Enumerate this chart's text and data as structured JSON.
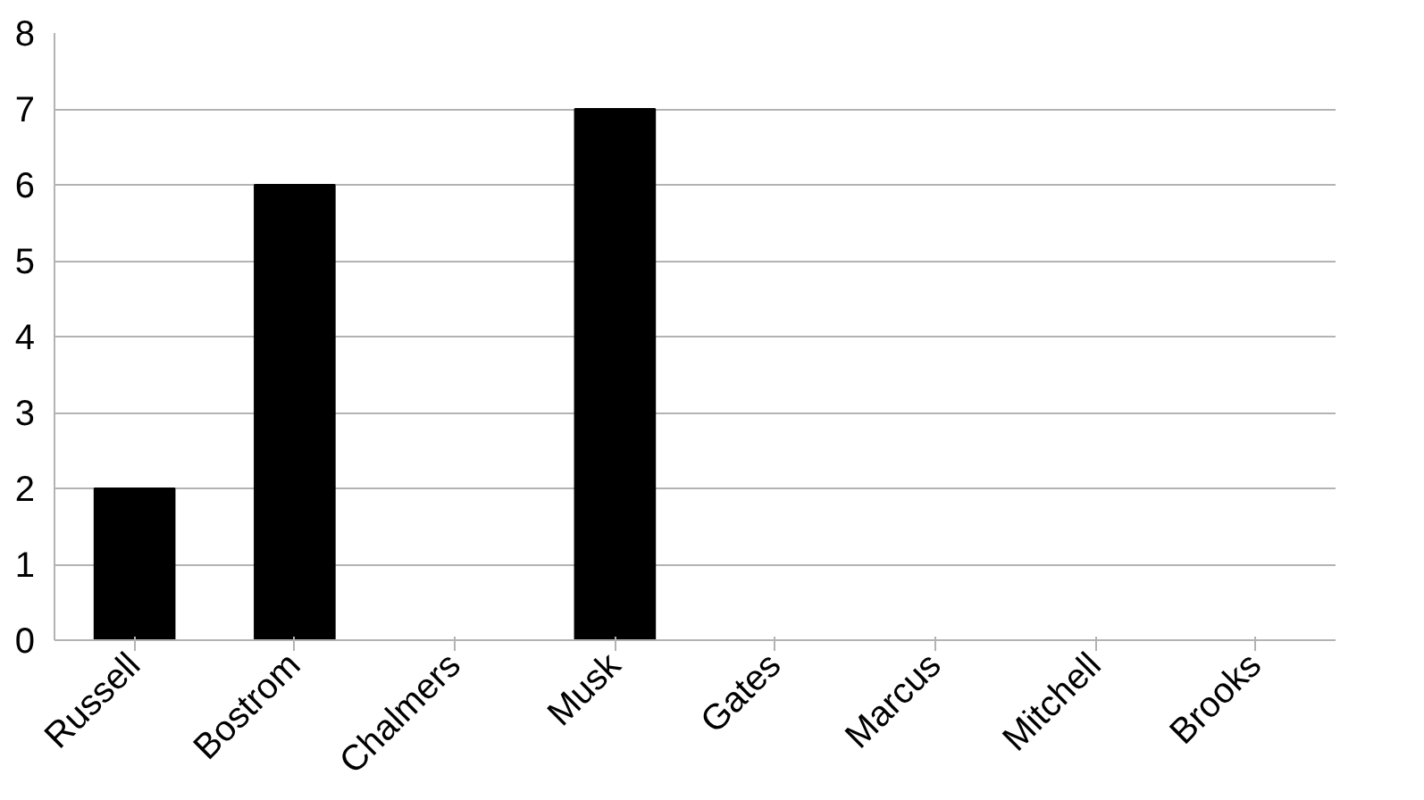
{
  "chart_data": {
    "type": "bar",
    "categories": [
      "Russell",
      "Bostrom",
      "Chalmers",
      "Musk",
      "Gates",
      "Marcus",
      "Mitchell",
      "Brooks"
    ],
    "values": [
      2,
      6,
      0,
      7,
      0,
      0,
      0,
      0
    ],
    "color": "#000000",
    "ylim": [
      0,
      8
    ],
    "yticks": [
      0,
      1,
      2,
      3,
      4,
      5,
      6,
      7,
      8
    ],
    "grid": "y"
  }
}
